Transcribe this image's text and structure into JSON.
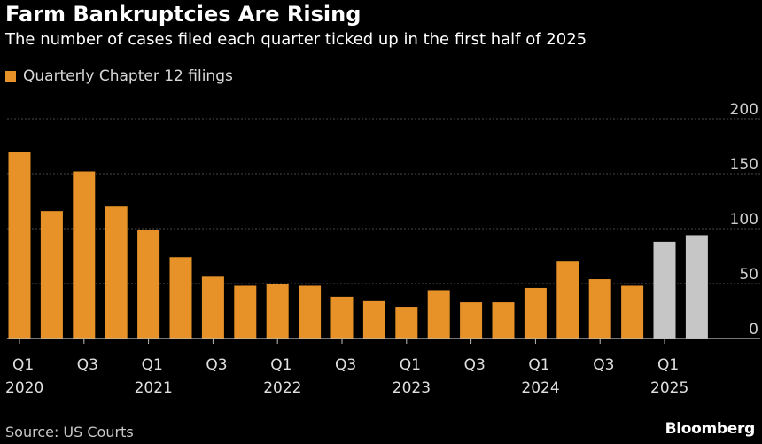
{
  "title": "Farm Bankruptcies Are Rising",
  "subtitle": "The number of cases filed each quarter ticked up in the first half of 2025",
  "legend_label": "Quarterly Chapter 12 filings",
  "source": "Source: US Courts",
  "brand": "Bloomberg",
  "colors": {
    "primary_bar": "#e69229",
    "highlight_bar": "#c6c6c6",
    "gridline": "#4a4a4a",
    "axis": "#bdbdbd"
  },
  "chart_data": {
    "type": "bar",
    "title": "Farm Bankruptcies Are Rising",
    "ylabel": "",
    "xlabel": "",
    "ylim": [
      0,
      200
    ],
    "yticks": [
      0,
      50,
      100,
      150,
      200
    ],
    "grid": true,
    "y_axis_side": "right",
    "series": [
      {
        "name": "Quarterly Chapter 12 filings",
        "values": [
          170,
          116,
          152,
          120,
          99,
          74,
          57,
          48,
          50,
          48,
          38,
          34,
          29,
          44,
          33,
          33,
          46,
          70,
          54,
          48,
          88,
          94
        ]
      }
    ],
    "highlighted_indices": [
      20,
      21
    ],
    "categories": [
      "Q1 2020",
      "Q2 2020",
      "Q3 2020",
      "Q4 2020",
      "Q1 2021",
      "Q2 2021",
      "Q3 2021",
      "Q4 2021",
      "Q1 2022",
      "Q2 2022",
      "Q3 2022",
      "Q4 2022",
      "Q1 2023",
      "Q2 2023",
      "Q3 2023",
      "Q4 2023",
      "Q1 2024",
      "Q2 2024",
      "Q3 2024",
      "Q4 2024",
      "Q1 2025",
      "Q2 2025"
    ],
    "x_tick_labels": [
      {
        "index": 0,
        "quarter": "Q1",
        "year": "2020"
      },
      {
        "index": 2,
        "quarter": "Q3",
        "year": ""
      },
      {
        "index": 4,
        "quarter": "Q1",
        "year": "2021"
      },
      {
        "index": 6,
        "quarter": "Q3",
        "year": ""
      },
      {
        "index": 8,
        "quarter": "Q1",
        "year": "2022"
      },
      {
        "index": 10,
        "quarter": "Q3",
        "year": ""
      },
      {
        "index": 12,
        "quarter": "Q1",
        "year": "2023"
      },
      {
        "index": 14,
        "quarter": "Q3",
        "year": ""
      },
      {
        "index": 16,
        "quarter": "Q1",
        "year": "2024"
      },
      {
        "index": 18,
        "quarter": "Q3",
        "year": ""
      },
      {
        "index": 20,
        "quarter": "Q1",
        "year": "2025"
      }
    ]
  }
}
